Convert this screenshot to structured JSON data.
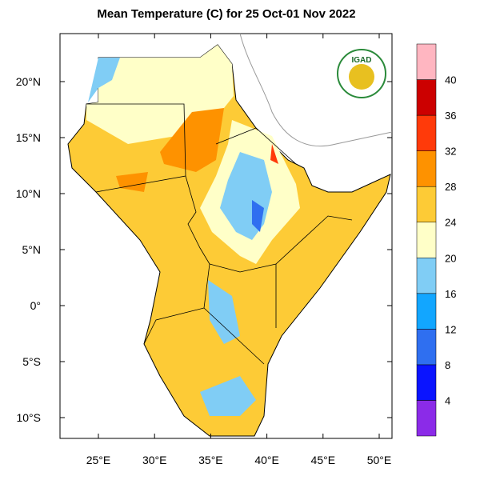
{
  "map": {
    "title": "Mean Temperature (C) for 25 Oct-01 Nov 2022",
    "logo": "IGAD",
    "lon_ticks": [
      {
        "value": 25,
        "label": "25°E"
      },
      {
        "value": 30,
        "label": "30°E"
      },
      {
        "value": 35,
        "label": "35°E"
      },
      {
        "value": 40,
        "label": "40°E"
      },
      {
        "value": 45,
        "label": "45°E"
      },
      {
        "value": 50,
        "label": "50°E"
      }
    ],
    "lat_ticks": [
      {
        "value": 20,
        "label": "20°N"
      },
      {
        "value": 15,
        "label": "15°N"
      },
      {
        "value": 10,
        "label": "10°N"
      },
      {
        "value": 5,
        "label": "5°N"
      },
      {
        "value": 0,
        "label": "0°"
      },
      {
        "value": -5,
        "label": "5°S"
      },
      {
        "value": -10,
        "label": "10°S"
      }
    ],
    "colorbar": {
      "levels": [
        4,
        8,
        12,
        16,
        20,
        24,
        28,
        32,
        36,
        40
      ],
      "colors": [
        "#8b2be8",
        "#0a14ff",
        "#2f6ff0",
        "#12a6ff",
        "#80cdf5",
        "#ffffc8",
        "#fdcb36",
        "#fe9200",
        "#ff3a0a",
        "#cc0000",
        "#ffb6c1"
      ]
    }
  }
}
